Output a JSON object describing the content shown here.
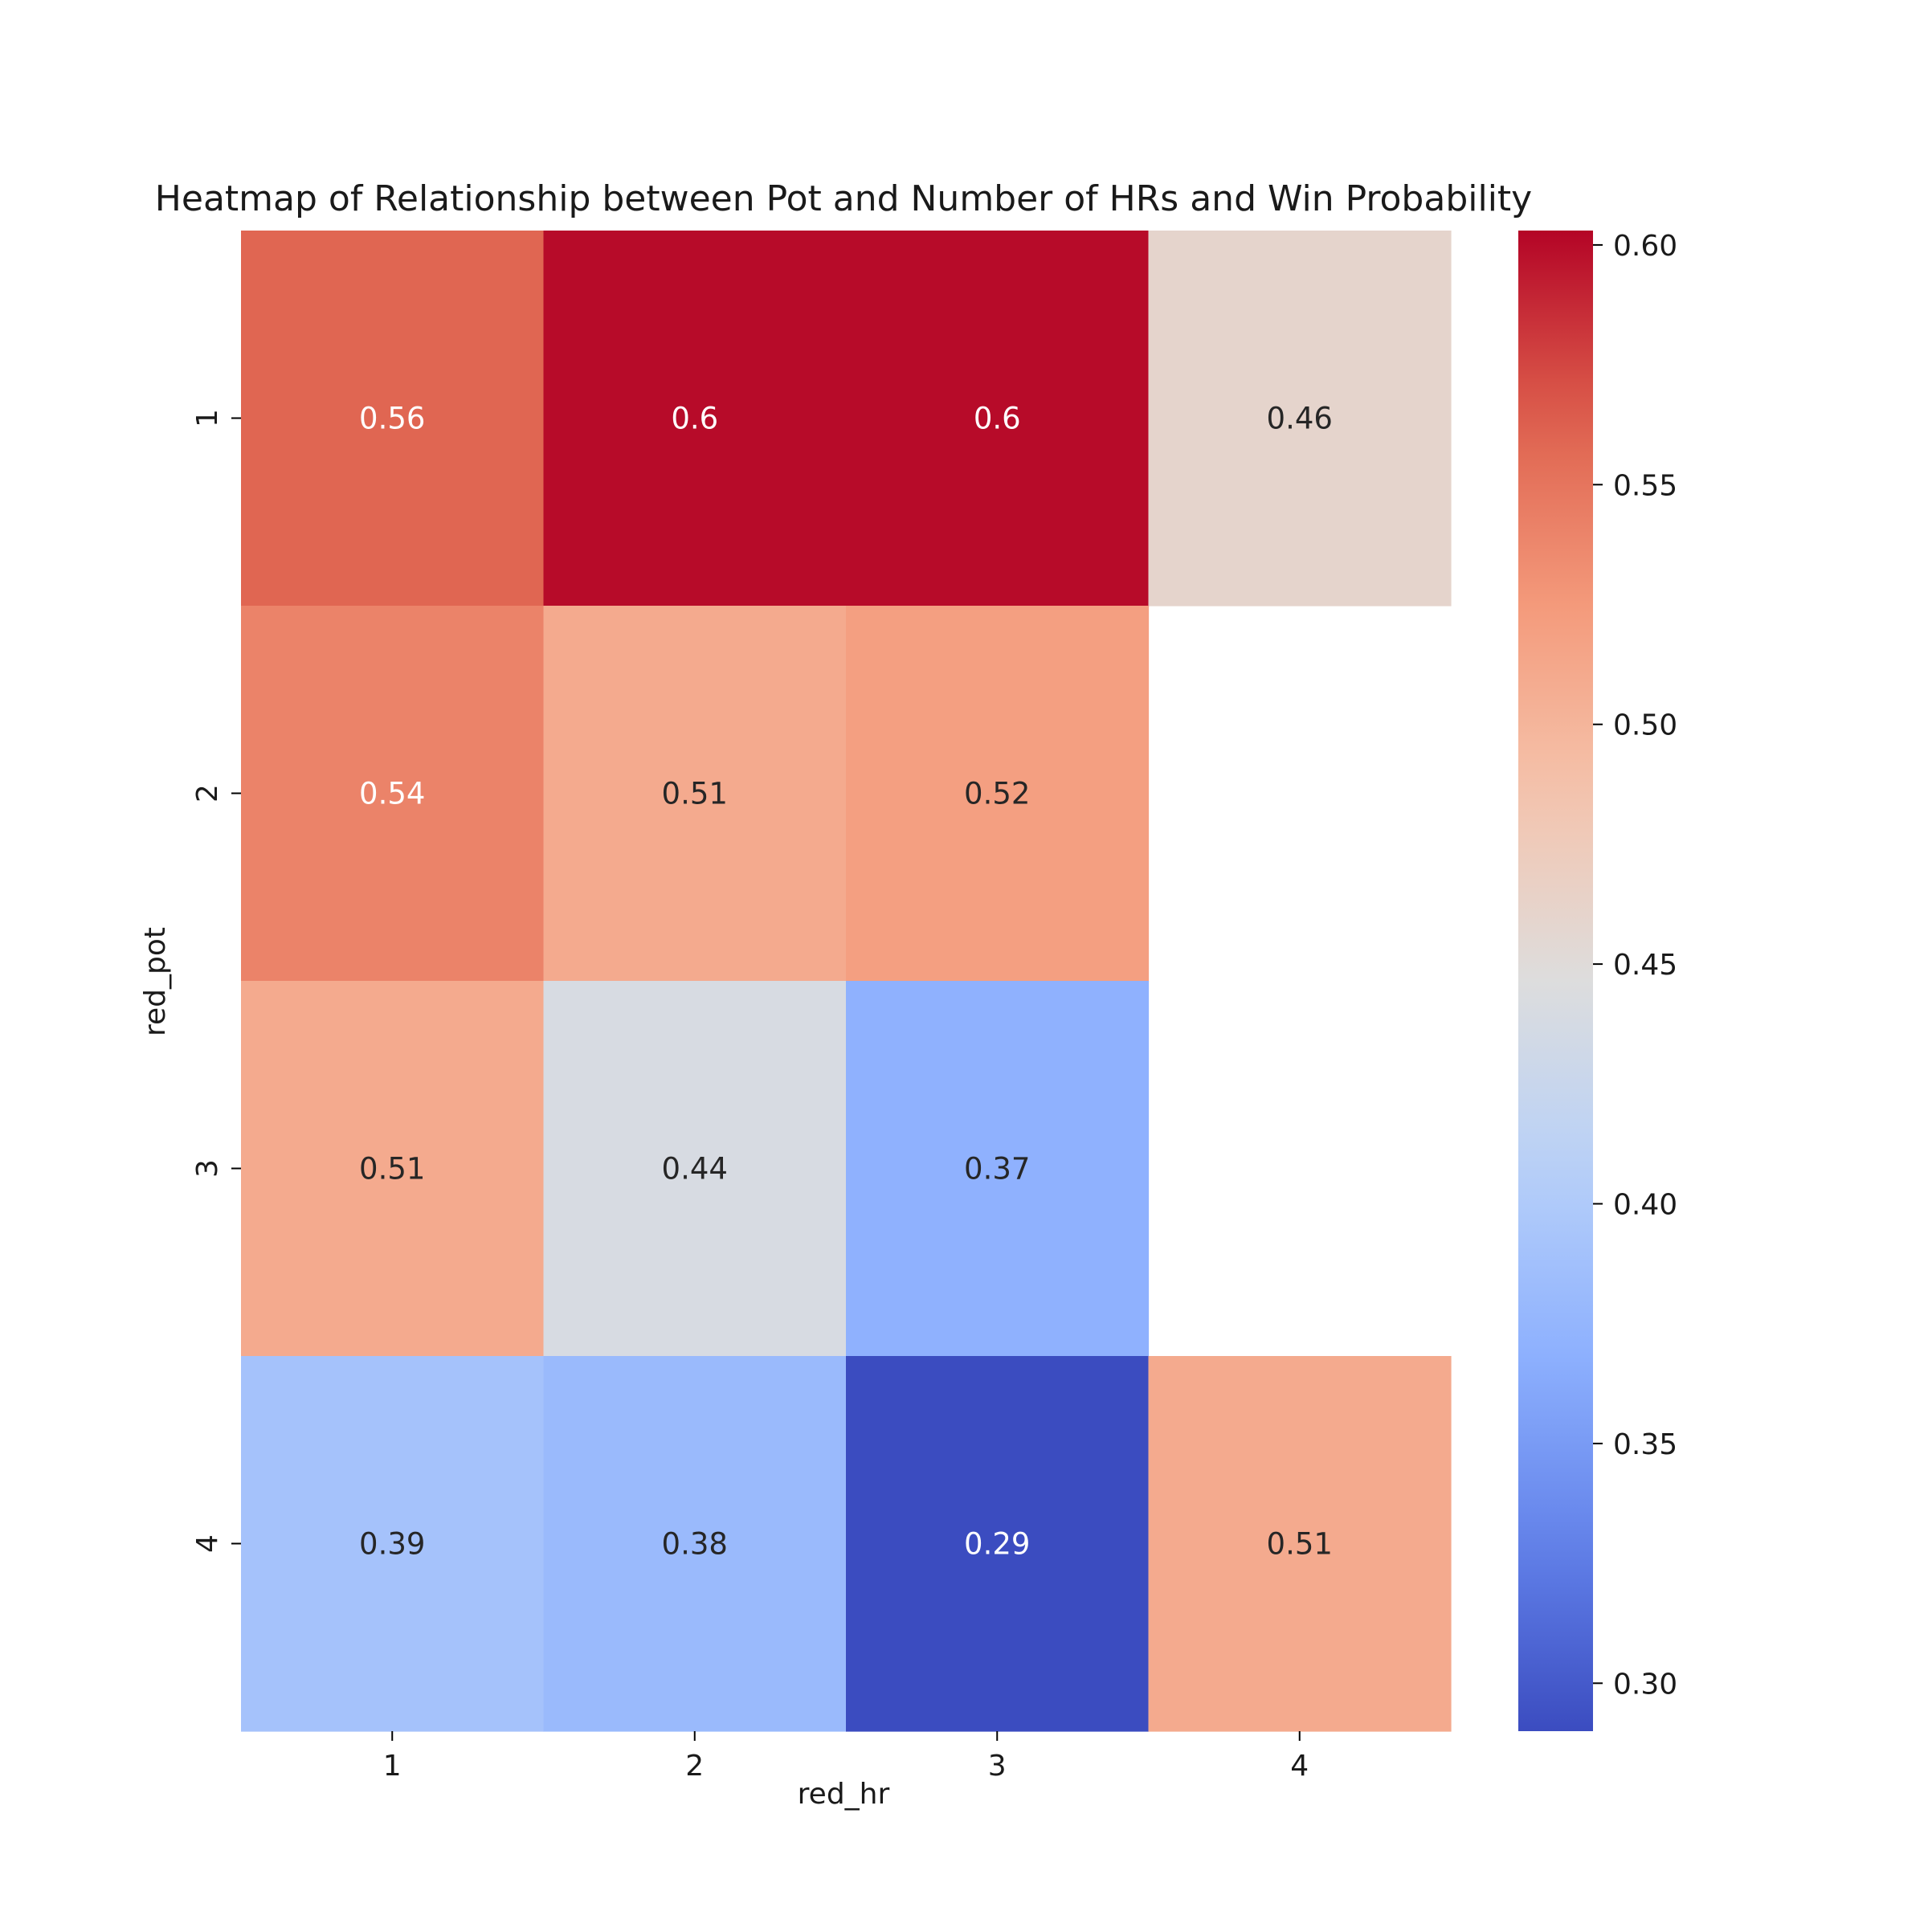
{
  "chart_data": {
    "type": "heatmap",
    "title": "Heatmap of Relationship between Pot and Number of HRs and Win Probability",
    "xlabel": "red_hr",
    "ylabel": "red_pot",
    "x_categories": [
      "1",
      "2",
      "3",
      "4"
    ],
    "y_categories": [
      "1",
      "2",
      "3",
      "4"
    ],
    "values": [
      [
        0.56,
        0.6,
        0.6,
        0.46
      ],
      [
        0.54,
        0.51,
        0.52,
        null
      ],
      [
        0.51,
        0.44,
        0.37,
        null
      ],
      [
        0.39,
        0.38,
        0.29,
        0.51
      ]
    ],
    "cell_labels": [
      [
        "0.56",
        "0.6",
        "0.6",
        "0.46"
      ],
      [
        "0.54",
        "0.51",
        "0.52",
        ""
      ],
      [
        "0.51",
        "0.44",
        "0.37",
        ""
      ],
      [
        "0.39",
        "0.38",
        "0.29",
        "0.51"
      ]
    ],
    "colorbar": {
      "colormap": "coolwarm",
      "vmin": 0.29,
      "vmax": 0.603,
      "ticks": [
        0.3,
        0.35,
        0.4,
        0.45,
        0.5,
        0.55,
        0.6
      ],
      "tick_labels": [
        "0.30",
        "0.35",
        "0.40",
        "0.45",
        "0.50",
        "0.55",
        "0.60"
      ]
    },
    "grid": false
  }
}
